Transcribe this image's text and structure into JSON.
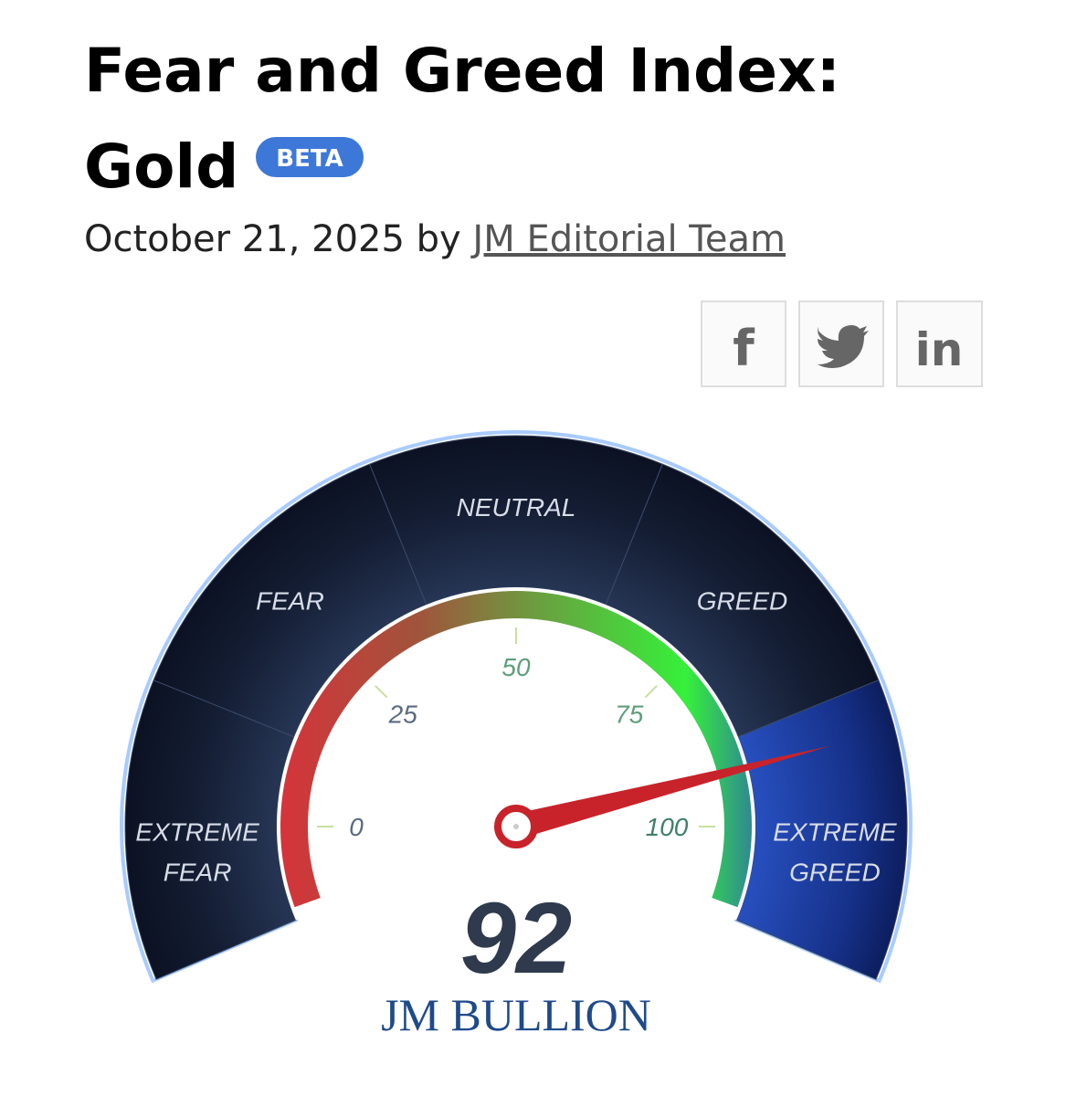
{
  "header": {
    "title_line1": "Fear and Greed Index:",
    "title_line2": "Gold",
    "badge": "BETA",
    "date": "October 21, 2025",
    "by": "by",
    "author": "JM Editorial Team"
  },
  "social": {
    "facebook": "f",
    "linkedin": "in"
  },
  "gauge": {
    "type": "gauge",
    "value": 92,
    "min": 0,
    "max": 100,
    "ticks": [
      0,
      25,
      50,
      75,
      100
    ],
    "zones": [
      [
        "EXTREME",
        "FEAR"
      ],
      [
        "FEAR"
      ],
      [
        "NEUTRAL"
      ],
      [
        "GREED"
      ],
      [
        "EXTREME",
        "GREED"
      ]
    ],
    "brand": "JM BULLION"
  }
}
